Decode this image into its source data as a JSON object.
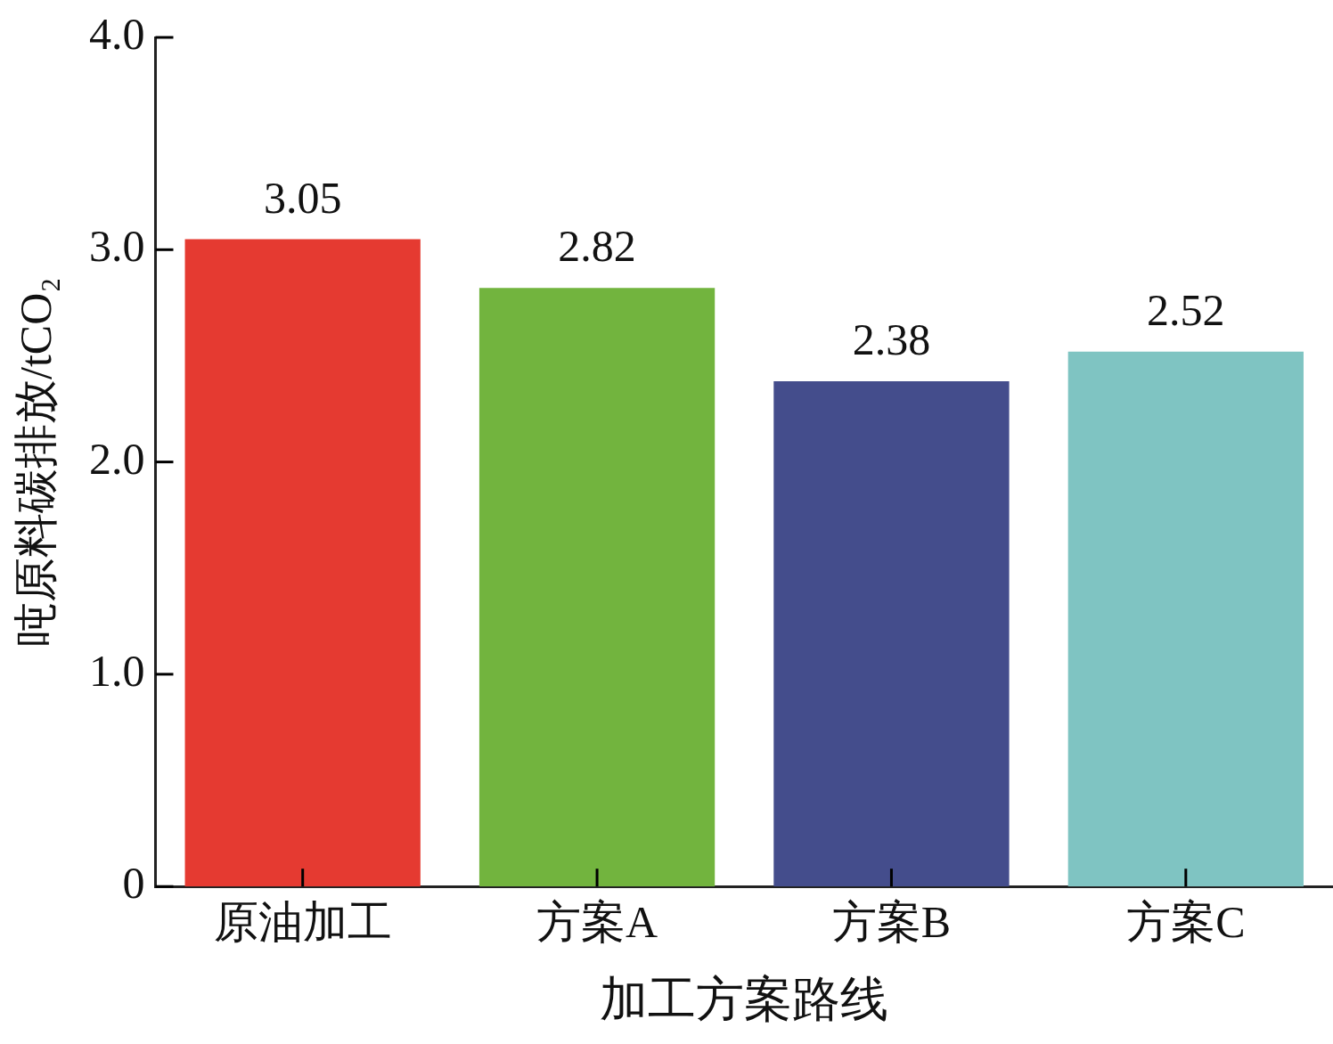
{
  "chart_data": {
    "type": "bar",
    "xlabel": "加工方案路线",
    "ylabel": "吨原料碳排放/tCO₂",
    "categories": [
      "原油加工",
      "方案A",
      "方案B",
      "方案C"
    ],
    "values": [
      3.05,
      2.82,
      2.38,
      2.52
    ],
    "colors": [
      "#e53a31",
      "#72b43e",
      "#444d8c",
      "#7fc4c2"
    ],
    "ylim": [
      0,
      4
    ],
    "yticks": [
      0,
      {
        "value": 1,
        "label": "1.0"
      },
      {
        "value": 2,
        "label": "2.0"
      },
      {
        "value": 3,
        "label": "3.0"
      },
      {
        "value": 4,
        "label": "4.0"
      }
    ],
    "data_labels": true,
    "grid": false,
    "legend": false
  }
}
